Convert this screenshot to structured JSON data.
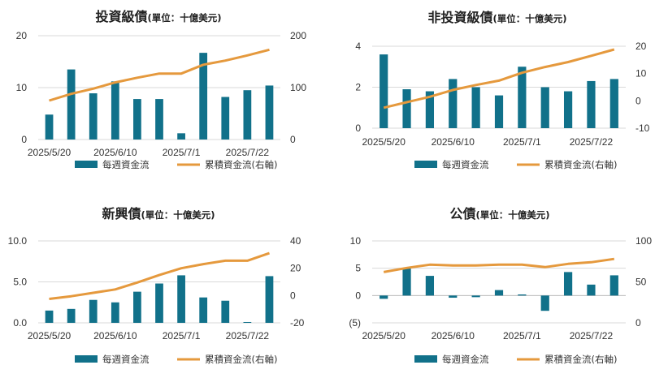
{
  "colors": {
    "bar": "#11718A",
    "line": "#E5993D",
    "grid": "#D9D9D9",
    "neg": "#C00000"
  },
  "chart_data": [
    {
      "type": "bar+line",
      "title": "投資級債",
      "unit": "(單位：十億美元)",
      "x_ticks": [
        "2025/5/20",
        "2025/6/10",
        "2025/7/1",
        "2025/7/22"
      ],
      "y_ticks": [
        "0",
        "10",
        "20"
      ],
      "y2_ticks": [
        "0",
        "100",
        "200"
      ],
      "ylim": [
        0,
        20
      ],
      "y2lim": [
        0,
        200
      ],
      "series": [
        {
          "name": "每週資金流",
          "type": "bar",
          "values": [
            4.8,
            13.5,
            8.9,
            11.2,
            7.8,
            7.8,
            1.2,
            16.7,
            8.2,
            9.5,
            10.4
          ]
        },
        {
          "name": "累積資金流(右軸)",
          "type": "line",
          "axis": "right",
          "values": [
            75,
            88,
            98,
            110,
            119,
            127,
            127,
            144,
            152,
            162,
            173
          ]
        }
      ]
    },
    {
      "type": "bar+line",
      "title": "非投資級債",
      "unit": "(單位：十億美元)",
      "x_ticks": [
        "2025/5/20",
        "2025/6/10",
        "2025/7/1",
        "2025/7/22"
      ],
      "y_ticks": [
        "0",
        "2",
        "4"
      ],
      "y2_ticks": [
        "-10",
        "0",
        "10",
        "20"
      ],
      "ylim": [
        0,
        4
      ],
      "y2lim": [
        -10,
        20
      ],
      "series": [
        {
          "name": "每週資金流",
          "type": "bar",
          "values": [
            3.6,
            1.9,
            1.8,
            2.4,
            2.0,
            1.6,
            3.0,
            2.0,
            1.8,
            2.3,
            2.4
          ]
        },
        {
          "name": "累積資金流(右軸)",
          "type": "line",
          "axis": "right",
          "values": [
            -2.5,
            -0.5,
            1.5,
            4.0,
            5.8,
            7.4,
            10.3,
            12.4,
            14.2,
            16.5,
            18.8
          ]
        }
      ]
    },
    {
      "type": "bar+line",
      "title": "新興債",
      "unit": "(單位：十億美元)",
      "x_ticks": [
        "2025/5/20",
        "2025/6/10",
        "2025/7/1",
        "2025/7/22"
      ],
      "y_ticks": [
        "0.0",
        "5.0",
        "10.0"
      ],
      "y2_ticks": [
        "-20",
        "0",
        "20",
        "40"
      ],
      "ylim": [
        0,
        10
      ],
      "y2lim": [
        -20,
        40
      ],
      "series": [
        {
          "name": "每週資金流",
          "type": "bar",
          "values": [
            1.5,
            1.7,
            2.8,
            2.5,
            3.8,
            4.8,
            5.8,
            3.1,
            2.7,
            0.1,
            5.7
          ]
        },
        {
          "name": "累積資金流(右軸)",
          "type": "line",
          "axis": "right",
          "values": [
            -2.5,
            -0.5,
            2.0,
            4.5,
            9.5,
            15.0,
            20.0,
            23.0,
            25.5,
            25.5,
            31.0
          ]
        }
      ]
    },
    {
      "type": "bar+line",
      "title": "公債",
      "unit": "(單位：十億美元)",
      "x_ticks": [
        "2025/5/20",
        "2025/6/10",
        "2025/7/1",
        "2025/7/22"
      ],
      "y_ticks": [
        "(5)",
        "0",
        "5",
        "10"
      ],
      "y2_ticks": [
        "0",
        "50",
        "100"
      ],
      "ylim": [
        -5,
        10
      ],
      "y2lim": [
        0,
        100
      ],
      "series": [
        {
          "name": "每週資金流",
          "type": "bar",
          "values": [
            -0.6,
            5.0,
            3.6,
            -0.4,
            -0.3,
            1.0,
            0.2,
            -2.8,
            4.3,
            2.0,
            3.7
          ]
        },
        {
          "name": "累積資金流(右軸)",
          "type": "line",
          "axis": "right",
          "values": [
            62,
            67,
            71,
            70,
            70,
            71,
            71,
            68,
            72,
            74,
            78
          ]
        }
      ]
    }
  ]
}
